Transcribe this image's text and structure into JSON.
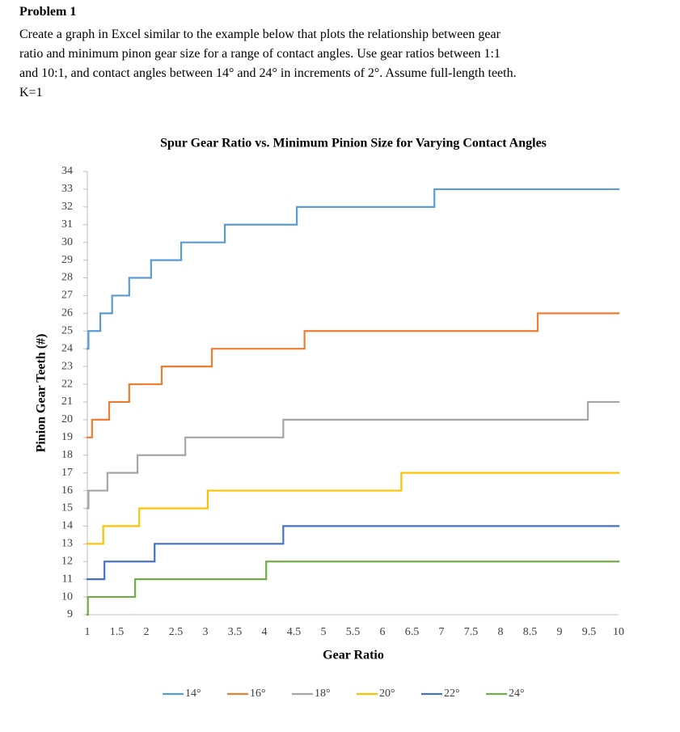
{
  "problem": {
    "title": "Problem 1",
    "lines": [
      "Create a graph in Excel similar to the example below that plots the relationship between gear",
      "ratio and minimum pinon gear size for a range of contact angles. Use gear ratios between 1:1",
      "and 10:1, and contact angles between 14° and 24° in increments of 2°. Assume full-length teeth.",
      "K=1"
    ]
  },
  "chart_data": {
    "type": "step",
    "title": "Spur Gear Ratio vs. Minimum Pinion Size for Varying Contact Angles",
    "x_label": "Gear Ratio",
    "y_label": "Pinion Gear Teeth (#)",
    "xlim": [
      1,
      10
    ],
    "ylim": [
      9,
      34
    ],
    "xticks": [
      1,
      1.5,
      2,
      2.5,
      3,
      3.5,
      4,
      4.5,
      5,
      5.5,
      6,
      6.5,
      7,
      7.5,
      8,
      8.5,
      9,
      9.5,
      10
    ],
    "yticks": [
      9,
      10,
      11,
      12,
      13,
      14,
      15,
      16,
      17,
      18,
      19,
      20,
      21,
      22,
      23,
      24,
      25,
      26,
      27,
      28,
      29,
      30,
      31,
      32,
      33,
      34
    ],
    "legend": "bottom",
    "series": [
      {
        "name": "14°",
        "color": "#5b9bd5",
        "x": [
          1,
          1.02,
          1.22,
          1.42,
          1.71,
          2.08,
          2.59,
          3.33,
          4.55,
          6.88,
          10
        ],
        "values": [
          24,
          25,
          26,
          27,
          28,
          29,
          30,
          31,
          32,
          33,
          33
        ]
      },
      {
        "name": "16°",
        "color": "#ed7d31",
        "x": [
          1,
          1.08,
          1.37,
          1.71,
          2.26,
          3.11,
          4.68,
          8.63,
          10
        ],
        "values": [
          19,
          20,
          21,
          22,
          23,
          24,
          25,
          26,
          26
        ]
      },
      {
        "name": "18°",
        "color": "#a5a5a5",
        "x": [
          1,
          1.02,
          1.34,
          1.85,
          2.66,
          4.32,
          9.48,
          10
        ],
        "values": [
          15,
          16,
          17,
          18,
          19,
          20,
          21,
          21
        ]
      },
      {
        "name": "20°",
        "color": "#ffc000",
        "x": [
          1,
          1.27,
          1.88,
          3.04,
          6.32,
          10
        ],
        "values": [
          13,
          14,
          15,
          16,
          17,
          17
        ]
      },
      {
        "name": "22°",
        "color": "#4472c4",
        "x": [
          1,
          1.29,
          2.14,
          4.32,
          10
        ],
        "values": [
          11,
          12,
          13,
          14,
          14
        ]
      },
      {
        "name": "24°",
        "color": "#70ad47",
        "x": [
          1,
          1.01,
          1.81,
          4.03,
          10
        ],
        "values": [
          9,
          10,
          11,
          12,
          12
        ]
      }
    ]
  }
}
